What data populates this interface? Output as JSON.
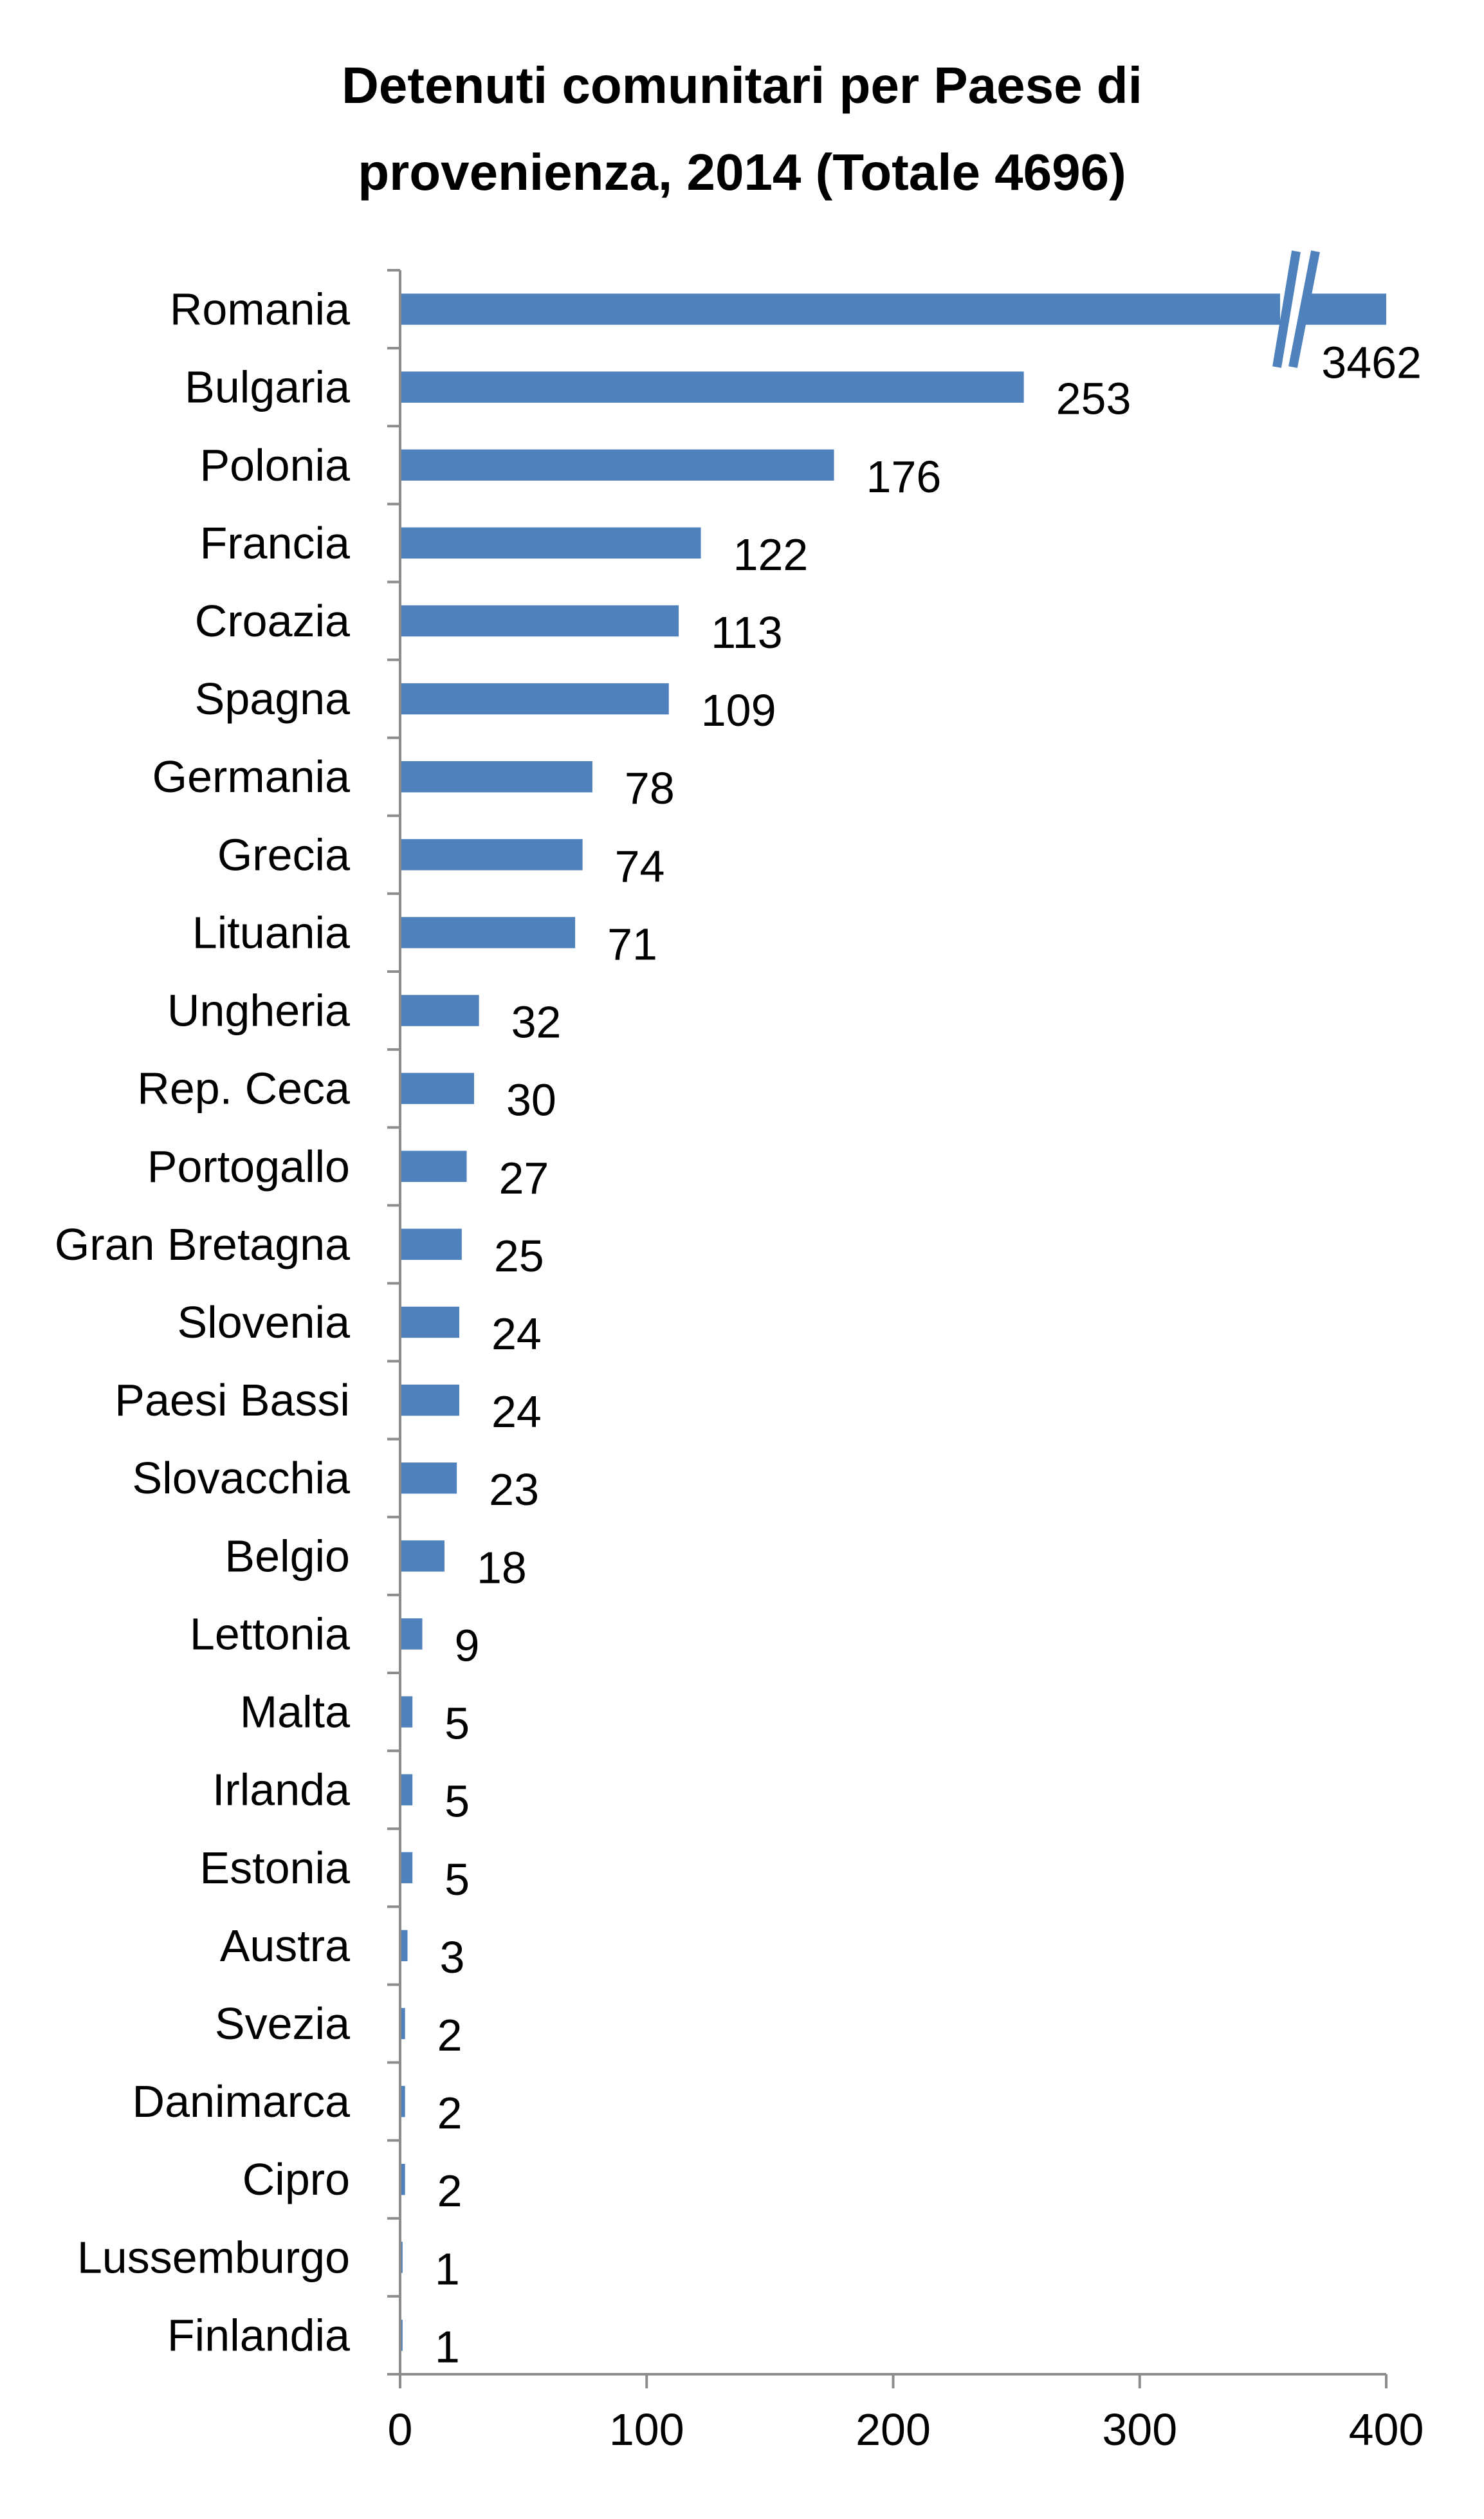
{
  "chart_data": {
    "type": "bar",
    "orientation": "horizontal",
    "title_lines": [
      "Detenuti comunitari per Paese di",
      "provenienza, 2014 (Totale 4696)"
    ],
    "categories": [
      "Romania",
      "Bulgaria",
      "Polonia",
      "Francia",
      "Croazia",
      "Spagna",
      "Germania",
      "Grecia",
      "Lituania",
      "Ungheria",
      "Rep. Ceca",
      "Portogallo",
      "Gran Bretagna",
      "Slovenia",
      "Paesi Bassi",
      "Slovacchia",
      "Belgio",
      "Lettonia",
      "Malta",
      "Irlanda",
      "Estonia",
      "Austra",
      "Svezia",
      "Danimarca",
      "Cipro",
      "Lussemburgo",
      "Finlandia"
    ],
    "values": [
      3462,
      253,
      176,
      122,
      113,
      109,
      78,
      74,
      71,
      32,
      30,
      27,
      25,
      24,
      24,
      23,
      18,
      9,
      5,
      5,
      5,
      3,
      2,
      2,
      2,
      1,
      1
    ],
    "xlim": [
      0,
      400
    ],
    "xticks": [
      "0",
      "100",
      "200",
      "300",
      "400"
    ],
    "axis_break": "Romania",
    "bar_color": "#4F81BD",
    "grid": false,
    "legend": "none"
  }
}
